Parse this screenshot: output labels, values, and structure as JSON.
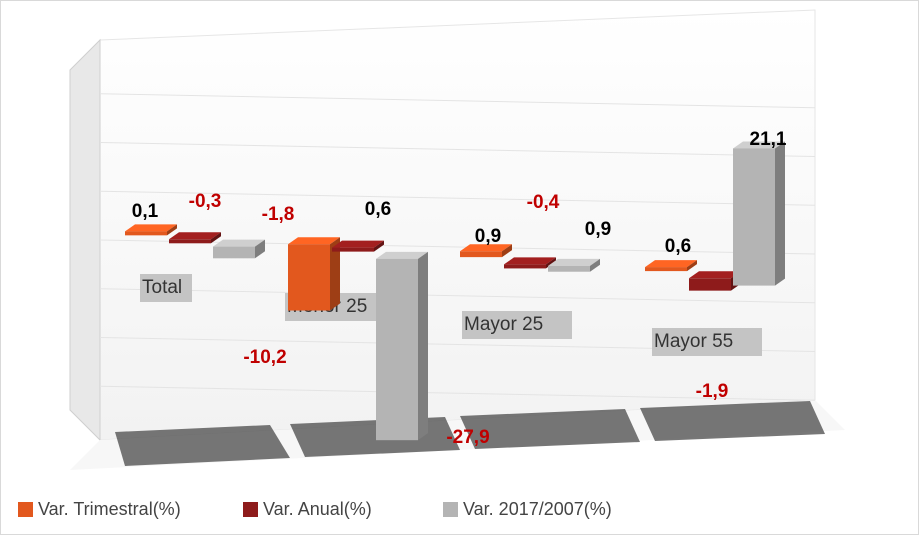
{
  "chart_data": {
    "type": "bar3d",
    "categories": [
      "Total",
      "Menor 25",
      "Mayor 25",
      "Mayor 55"
    ],
    "series": [
      {
        "name": "Var. Trimestral(%)",
        "color": "#e2581e",
        "values": [
          0.1,
          -10.2,
          0.9,
          0.6
        ],
        "value_labels": [
          "0,1",
          "-10,2",
          "0,9",
          "0,6"
        ]
      },
      {
        "name": "Var. Anual(%)",
        "color": "#8e1b1b",
        "values": [
          -0.3,
          0.6,
          -0.4,
          -1.9
        ],
        "value_labels": [
          "-0,3",
          "0,6",
          "-0,4",
          "-1,9"
        ]
      },
      {
        "name": "Var. 2017/2007(%)",
        "color": "#b4b4b4",
        "values": [
          -1.8,
          -27.9,
          0.9,
          21.1
        ],
        "value_labels": [
          "-1,8",
          "-27,9",
          "0,9",
          "21,1"
        ]
      }
    ],
    "ylim": [
      -30,
      30
    ],
    "yticks": [
      -30,
      -20,
      -10,
      0,
      10,
      20,
      30
    ],
    "grid": true
  }
}
